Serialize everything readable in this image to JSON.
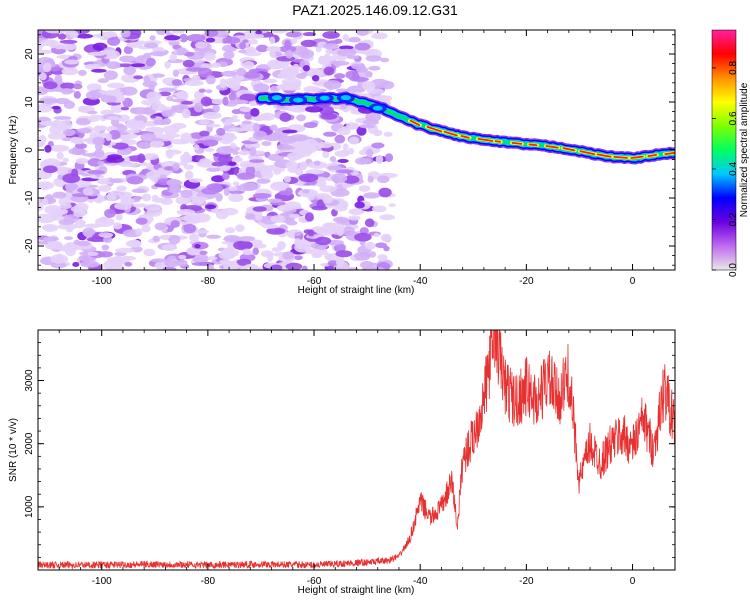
{
  "title": "PAZ1.2025.146.09.12.G31",
  "colors": {
    "snr_line": "#e83030",
    "colorbar_stops": [
      "#e8e8e8",
      "#c06af0",
      "#6a00e0",
      "#0000ff",
      "#00c8ff",
      "#00ff60",
      "#80ff00",
      "#ffff00",
      "#ff9000",
      "#ff0000",
      "#ff20a0"
    ]
  },
  "chart_data": [
    {
      "type": "heatmap",
      "xlabel": "Height of straight line (km)",
      "ylabel": "Frequency (Hz)",
      "xlim": [
        -112,
        8
      ],
      "ylim": [
        -25,
        25
      ],
      "xticks": [
        -100,
        -80,
        -60,
        -40,
        -20,
        0
      ],
      "yticks": [
        -20,
        -10,
        0,
        10,
        20
      ],
      "grid": false,
      "colorbar": {
        "label": "Normalized spectral amplitude",
        "range": [
          0.0,
          0.95
        ],
        "ticks": [
          0.0,
          0.2,
          0.4,
          0.6,
          0.8
        ]
      },
      "ridge": {
        "x": [
          -70,
          -66,
          -62,
          -58,
          -54,
          -50,
          -47,
          -44,
          -40,
          -36,
          -32,
          -28,
          -24,
          -20,
          -16,
          -12,
          -8,
          -4,
          0,
          4,
          8
        ],
        "y": [
          10.8,
          10.5,
          10.6,
          10.7,
          10.8,
          9.6,
          8.6,
          7.0,
          5.2,
          3.9,
          2.8,
          2.1,
          1.6,
          1.2,
          0.8,
          0.2,
          -0.7,
          -1.4,
          -1.7,
          -1.1,
          -0.6
        ]
      }
    },
    {
      "type": "line",
      "xlabel": "Height of straight line (km)",
      "ylabel": "SNR (10 * v/v)",
      "xlim": [
        -112,
        8
      ],
      "ylim": [
        0,
        3800
      ],
      "xticks": [
        -100,
        -80,
        -60,
        -40,
        -20,
        0
      ],
      "yticks": [
        1000,
        2000,
        3000
      ],
      "grid": false,
      "series": [
        {
          "x": [
            -112,
            -100,
            -90,
            -80,
            -70,
            -60,
            -50,
            -46,
            -44,
            -42,
            -40,
            -38,
            -36,
            -34,
            -33,
            -32,
            -30,
            -28,
            -26,
            -24,
            -22,
            -20,
            -18,
            -16,
            -14,
            -12,
            -10,
            -8,
            -6,
            -4,
            -2,
            0,
            2,
            4,
            6,
            8
          ],
          "values": [
            80,
            80,
            90,
            80,
            90,
            80,
            120,
            150,
            220,
            480,
            1080,
            820,
            1000,
            1400,
            680,
            1750,
            2100,
            2700,
            3800,
            2900,
            2650,
            2900,
            2650,
            3050,
            2700,
            3100,
            1400,
            2000,
            1700,
            2000,
            2150,
            1950,
            2400,
            1900,
            2900,
            2250
          ]
        }
      ]
    }
  ]
}
